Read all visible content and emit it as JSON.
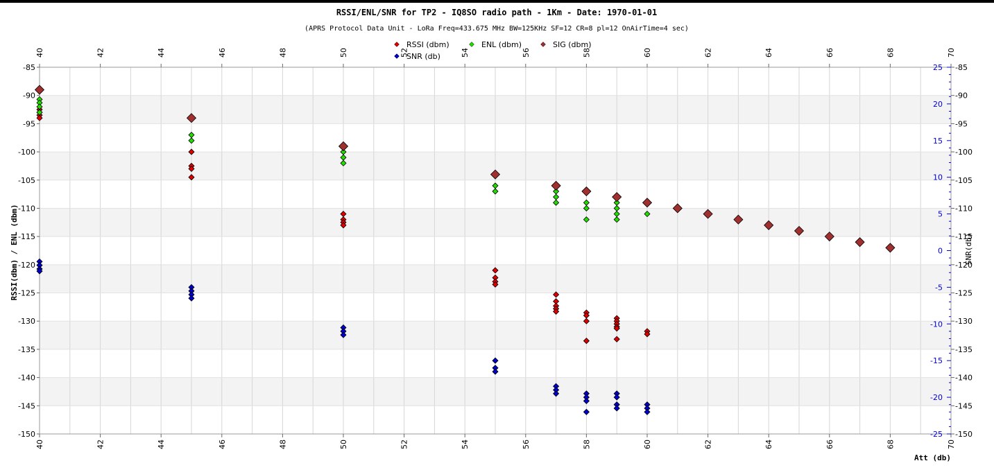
{
  "chart_data": {
    "type": "scatter",
    "title": "RSSI/ENL/SNR for TP2 - IQ8SO radio path - 1Km - Date: 1970-01-01",
    "subtitle": "(APRS Protocol Data Unit - LoRa Freq=433.675 MHz BW=125KHz SF=12 CR=8 pl=12 OnAirTime=4 sec)",
    "xlabel": "Att (db)",
    "ylabel_left": "RSSI(dbm) / ENL (dbm)",
    "ylabel_right": "SNR(db)",
    "xlim": [
      40,
      70
    ],
    "ylim_left": [
      -150,
      -85
    ],
    "ylim_right": [
      -25,
      25
    ],
    "x_ticks": [
      40,
      42,
      44,
      46,
      48,
      50,
      52,
      54,
      56,
      58,
      60,
      62,
      64,
      66,
      68,
      70
    ],
    "y_left_ticks": [
      -85,
      -90,
      -95,
      -100,
      -105,
      -110,
      -115,
      -120,
      -125,
      -130,
      -135,
      -140,
      -145,
      -150
    ],
    "y_right_ticks": [
      25,
      20,
      15,
      10,
      5,
      0,
      -5,
      -10,
      -15,
      -20,
      -25
    ],
    "grid": true,
    "legend_position": "top-center",
    "series": [
      {
        "name": "RSSI (dbm)",
        "axis": "left",
        "color": "#e00000",
        "points": [
          [
            40,
            -92.5
          ],
          [
            40,
            -93
          ],
          [
            40,
            -93.5
          ],
          [
            40,
            -94
          ],
          [
            45,
            -100
          ],
          [
            45,
            -102.5
          ],
          [
            45,
            -103
          ],
          [
            45,
            -104.5
          ],
          [
            50,
            -111
          ],
          [
            50,
            -112
          ],
          [
            50,
            -112.5
          ],
          [
            50,
            -113
          ],
          [
            55,
            -121
          ],
          [
            55,
            -122.3
          ],
          [
            55,
            -123
          ],
          [
            55,
            -123.5
          ],
          [
            57,
            -125.3
          ],
          [
            57,
            -126.5
          ],
          [
            57,
            -127.3
          ],
          [
            57,
            -127.8
          ],
          [
            57,
            -128.3
          ],
          [
            58,
            -128.5
          ],
          [
            58,
            -129
          ],
          [
            58,
            -130
          ],
          [
            58,
            -133.5
          ],
          [
            59,
            -129.5
          ],
          [
            59,
            -130
          ],
          [
            59,
            -130.5
          ],
          [
            59,
            -131
          ],
          [
            59,
            -131.3
          ],
          [
            59,
            -133.2
          ],
          [
            60,
            -131.8
          ],
          [
            60,
            -132.3
          ]
        ]
      },
      {
        "name": "ENL (dbm)",
        "axis": "left",
        "color": "#22dd00",
        "points": [
          [
            40,
            -90.7
          ],
          [
            40,
            -91.3
          ],
          [
            40,
            -92
          ],
          [
            40,
            -93
          ],
          [
            45,
            -97
          ],
          [
            45,
            -98
          ],
          [
            50,
            -100
          ],
          [
            50,
            -101
          ],
          [
            50,
            -102
          ],
          [
            55,
            -106
          ],
          [
            55,
            -107
          ],
          [
            57,
            -107
          ],
          [
            57,
            -108
          ],
          [
            57,
            -109
          ],
          [
            58,
            -109
          ],
          [
            58,
            -110
          ],
          [
            58,
            -112
          ],
          [
            59,
            -109
          ],
          [
            59,
            -110
          ],
          [
            59,
            -111
          ],
          [
            59,
            -112
          ],
          [
            60,
            -111
          ]
        ]
      },
      {
        "name": "SIG (dbm)",
        "axis": "left",
        "color": "#a03030",
        "points": [
          [
            40,
            -89
          ],
          [
            45,
            -94
          ],
          [
            50,
            -99
          ],
          [
            55,
            -104
          ],
          [
            57,
            -106
          ],
          [
            58,
            -107
          ],
          [
            59,
            -108
          ],
          [
            60,
            -109
          ],
          [
            61,
            -110
          ],
          [
            62,
            -111
          ],
          [
            63,
            -112
          ],
          [
            64,
            -113
          ],
          [
            65,
            -114
          ],
          [
            66,
            -115
          ],
          [
            67,
            -116
          ],
          [
            68,
            -117
          ]
        ]
      },
      {
        "name": "SNR (db)",
        "axis": "right",
        "color": "#0000cc",
        "points": [
          [
            40,
            -1.5
          ],
          [
            40,
            -2
          ],
          [
            40,
            -2.5
          ],
          [
            40,
            -2.8
          ],
          [
            45,
            -5
          ],
          [
            45,
            -5.5
          ],
          [
            45,
            -6
          ],
          [
            45,
            -6.5
          ],
          [
            50,
            -10.5
          ],
          [
            50,
            -11
          ],
          [
            50,
            -11.5
          ],
          [
            55,
            -15
          ],
          [
            55,
            -16
          ],
          [
            55,
            -16.5
          ],
          [
            57,
            -18.5
          ],
          [
            57,
            -19
          ],
          [
            57,
            -19.5
          ],
          [
            58,
            -19.5
          ],
          [
            58,
            -20
          ],
          [
            58,
            -20.5
          ],
          [
            58,
            -22
          ],
          [
            59,
            -19.5
          ],
          [
            59,
            -20
          ],
          [
            59,
            -21
          ],
          [
            59,
            -21.5
          ],
          [
            60,
            -21
          ],
          [
            60,
            -21.5
          ],
          [
            60,
            -22
          ]
        ]
      }
    ]
  }
}
